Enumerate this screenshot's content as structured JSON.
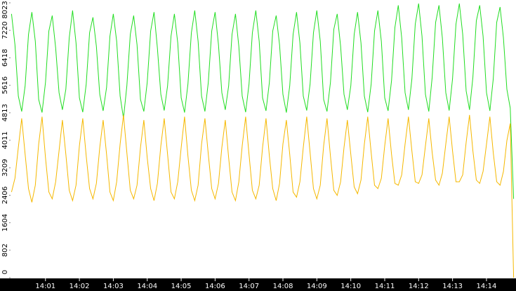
{
  "chart_data": {
    "type": "line",
    "x": [
      0,
      0.1,
      0.2,
      0.3,
      0.4,
      0.5,
      0.6,
      0.7,
      0.8,
      0.9,
      1,
      1.1,
      1.2,
      1.3,
      1.4,
      1.5,
      1.6,
      1.7,
      1.8,
      1.9,
      2,
      2.1,
      2.2,
      2.3,
      2.4,
      2.5,
      2.6,
      2.7,
      2.8,
      2.9,
      3,
      3.1,
      3.2,
      3.3,
      3.4,
      3.5,
      3.6,
      3.7,
      3.8,
      3.9,
      4,
      4.1,
      4.2,
      4.3,
      4.4,
      4.5,
      4.6,
      4.7,
      4.8,
      4.9,
      5,
      5.1,
      5.2,
      5.3,
      5.4,
      5.5,
      5.6,
      5.7,
      5.8,
      5.9,
      6,
      6.1,
      6.2,
      6.3,
      6.4,
      6.5,
      6.6,
      6.7,
      6.8,
      6.9,
      7,
      7.1,
      7.2,
      7.3,
      7.4,
      7.5,
      7.6,
      7.7,
      7.8,
      7.9,
      8,
      8.1,
      8.2,
      8.3,
      8.4,
      8.5,
      8.6,
      8.7,
      8.8,
      8.9,
      9,
      9.1,
      9.2,
      9.3,
      9.4,
      9.5,
      9.6,
      9.7,
      9.8,
      9.9,
      10,
      10.1,
      10.2,
      10.3,
      10.4,
      10.5,
      10.6,
      10.7,
      10.8,
      10.9,
      11,
      11.1,
      11.2,
      11.3,
      11.4,
      11.5,
      11.6,
      11.7,
      11.8,
      11.9,
      12,
      12.1,
      12.2,
      12.3,
      12.4,
      12.5,
      12.6,
      12.7,
      12.8,
      12.9,
      13,
      13.1,
      13.2,
      13.3,
      13.4,
      13.5,
      13.6,
      13.7,
      13.8,
      13.9,
      14,
      14.1,
      14.2,
      14.3,
      14.4,
      14.5,
      14.6,
      14.7,
      14.8
    ],
    "series": [
      {
        "name": "green",
        "color": "#22dd22",
        "values": [
          7700,
          6800,
          5300,
          4850,
          5600,
          7100,
          7750,
          6900,
          5200,
          4820,
          5700,
          7200,
          7650,
          6700,
          5400,
          4900,
          5500,
          7000,
          7800,
          6850,
          5250,
          4830,
          5650,
          7150,
          7600,
          6750,
          5350,
          4870,
          5550,
          7050,
          7700,
          6900,
          5300,
          4650,
          5600,
          7100,
          7650,
          6800,
          5200,
          4850,
          5700,
          7200,
          7750,
          6700,
          5350,
          4880,
          5600,
          7050,
          7700,
          6850,
          5250,
          4820,
          5650,
          7150,
          7800,
          6900,
          5300,
          4850,
          5700,
          7200,
          7750,
          6800,
          5400,
          4900,
          5600,
          7100,
          7700,
          6750,
          5300,
          4830,
          5650,
          7150,
          7800,
          6900,
          5250,
          4870,
          5700,
          7200,
          7650,
          6800,
          5350,
          4820,
          5600,
          7100,
          7750,
          6850,
          5300,
          4880,
          5650,
          7150,
          7800,
          6900,
          5200,
          4850,
          5700,
          7250,
          7700,
          6750,
          5350,
          4900,
          5600,
          7100,
          7750,
          6850,
          5300,
          4830,
          5650,
          7200,
          7800,
          6900,
          5250,
          4870,
          5750,
          7300,
          7950,
          7000,
          5400,
          4900,
          5800,
          7400,
          8000,
          7050,
          5350,
          4850,
          5850,
          7450,
          7950,
          7000,
          5400,
          4880,
          5800,
          7400,
          8000,
          7100,
          5450,
          4900,
          5850,
          7500,
          7950,
          7050,
          5400,
          4870,
          5800,
          7450,
          7900,
          7000,
          5500,
          4950,
          2300
        ]
      },
      {
        "name": "yellow",
        "color": "#f5b800",
        "values": [
          2500,
          2900,
          3800,
          4650,
          3600,
          2600,
          2200,
          2700,
          3900,
          4700,
          3500,
          2500,
          2300,
          2800,
          3700,
          4600,
          3600,
          2550,
          2250,
          2700,
          3850,
          4650,
          3550,
          2600,
          2300,
          2750,
          3800,
          4600,
          3600,
          2500,
          2250,
          2800,
          3900,
          4750,
          3650,
          2550,
          2300,
          2700,
          3800,
          4600,
          3500,
          2600,
          2250,
          2750,
          3850,
          4650,
          3600,
          2500,
          2300,
          2800,
          3800,
          4700,
          3550,
          2550,
          2250,
          2700,
          3900,
          4650,
          3600,
          2600,
          2300,
          2750,
          3800,
          4600,
          3500,
          2500,
          2250,
          2800,
          3850,
          4700,
          3600,
          2550,
          2300,
          2700,
          3800,
          4650,
          3550,
          2600,
          2250,
          2750,
          3900,
          4600,
          3600,
          2500,
          2350,
          2800,
          3800,
          4700,
          3650,
          2600,
          2300,
          2700,
          3850,
          4650,
          3550,
          2550,
          2400,
          2800,
          3800,
          4600,
          3600,
          2650,
          2450,
          2850,
          3900,
          4700,
          3650,
          2700,
          2600,
          2900,
          3850,
          4650,
          3600,
          2750,
          2700,
          3000,
          3900,
          4700,
          3700,
          2800,
          2750,
          3000,
          3850,
          4650,
          3650,
          2850,
          2700,
          3050,
          3900,
          4700,
          3700,
          2800,
          2800,
          3000,
          3950,
          4750,
          3700,
          2850,
          2750,
          3100,
          3900,
          4700,
          3650,
          2800,
          2700,
          3100,
          4000,
          4500,
          0
        ]
      }
    ],
    "xlim": [
      -0.03,
      14.87
    ],
    "xticks": [
      {
        "value": 1,
        "label": "14:01"
      },
      {
        "value": 2,
        "label": "14:02"
      },
      {
        "value": 3,
        "label": "14:03"
      },
      {
        "value": 4,
        "label": "14:04"
      },
      {
        "value": 5,
        "label": "14:05"
      },
      {
        "value": 6,
        "label": "14:06"
      },
      {
        "value": 7,
        "label": "14:07"
      },
      {
        "value": 8,
        "label": "14:08"
      },
      {
        "value": 9,
        "label": "14:09"
      },
      {
        "value": 10,
        "label": "14:10"
      },
      {
        "value": 11,
        "label": "14:11"
      },
      {
        "value": 12,
        "label": "14:12"
      },
      {
        "value": 13,
        "label": "14:13"
      },
      {
        "value": 14,
        "label": "14:14"
      }
    ],
    "ylim": [
      0,
      8023
    ],
    "yticks": [
      0,
      802,
      1604,
      2406,
      3209,
      4011,
      4813,
      5616,
      6418,
      7220,
      8023
    ]
  }
}
